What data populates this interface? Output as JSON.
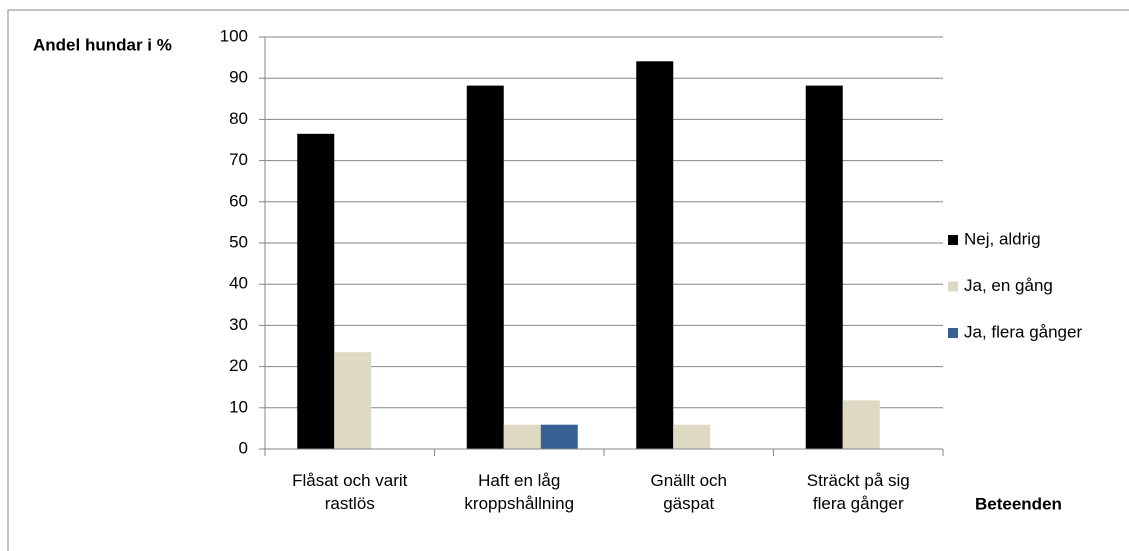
{
  "chart_data": {
    "type": "bar",
    "y_label": "Andel hundar i %",
    "x_label": "Beteenden",
    "categories": [
      "Flåsat och varit\nrastlös",
      "Haft en låg\nkroppshållning",
      "Gnällt och\ngäspat",
      "Sträckt på sig\nflera gånger"
    ],
    "series": [
      {
        "name": "Nej, aldrig",
        "color": "#000000",
        "values": [
          76.5,
          88.2,
          94.1,
          88.2
        ]
      },
      {
        "name": "Ja, en gång",
        "color": "#ddd9c3",
        "values": [
          23.5,
          5.9,
          5.9,
          11.8
        ]
      },
      {
        "name": "Ja, flera gånger",
        "color": "#376092",
        "values": [
          0,
          5.9,
          0,
          0
        ]
      }
    ],
    "ylim": [
      0,
      100
    ],
    "yticks": [
      0,
      10,
      20,
      30,
      40,
      50,
      60,
      70,
      80,
      90,
      100
    ],
    "grid": true,
    "legend": "right"
  }
}
